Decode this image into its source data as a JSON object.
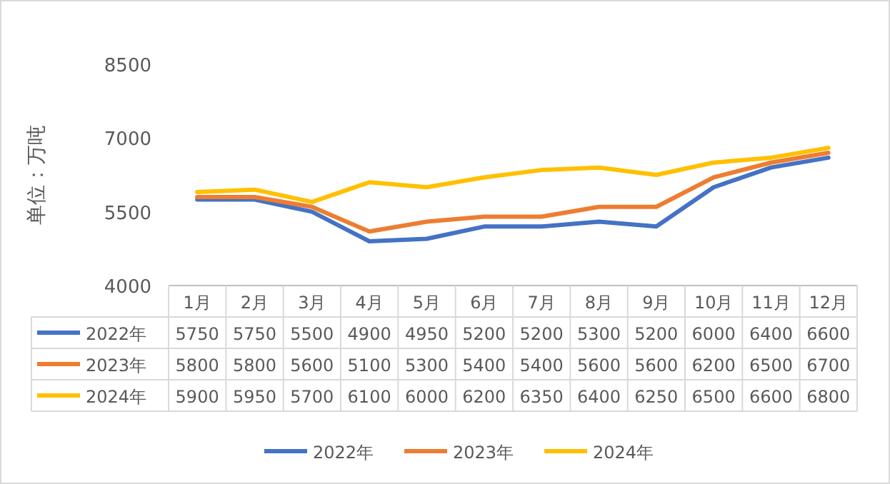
{
  "chart_data": {
    "type": "line",
    "ylabel": "单位：万吨",
    "categories": [
      "1月",
      "2月",
      "3月",
      "4月",
      "5月",
      "6月",
      "7月",
      "8月",
      "9月",
      "10月",
      "11月",
      "12月"
    ],
    "series": [
      {
        "name": "2022年",
        "color": "#4472c4",
        "values": [
          5750,
          5750,
          5500,
          4900,
          4950,
          5200,
          5200,
          5300,
          5200,
          6000,
          6400,
          6600
        ]
      },
      {
        "name": "2023年",
        "color": "#ed7d31",
        "values": [
          5800,
          5800,
          5600,
          5100,
          5300,
          5400,
          5400,
          5600,
          5600,
          6200,
          6500,
          6700
        ]
      },
      {
        "name": "2024年",
        "color": "#ffc000",
        "values": [
          5900,
          5950,
          5700,
          6100,
          6000,
          6200,
          6350,
          6400,
          6250,
          6500,
          6600,
          6800
        ]
      }
    ],
    "ylim": [
      4000,
      8500
    ],
    "yticks": [
      4000,
      5500,
      7000,
      8500
    ],
    "data_labels": true,
    "legend": "bottom"
  }
}
